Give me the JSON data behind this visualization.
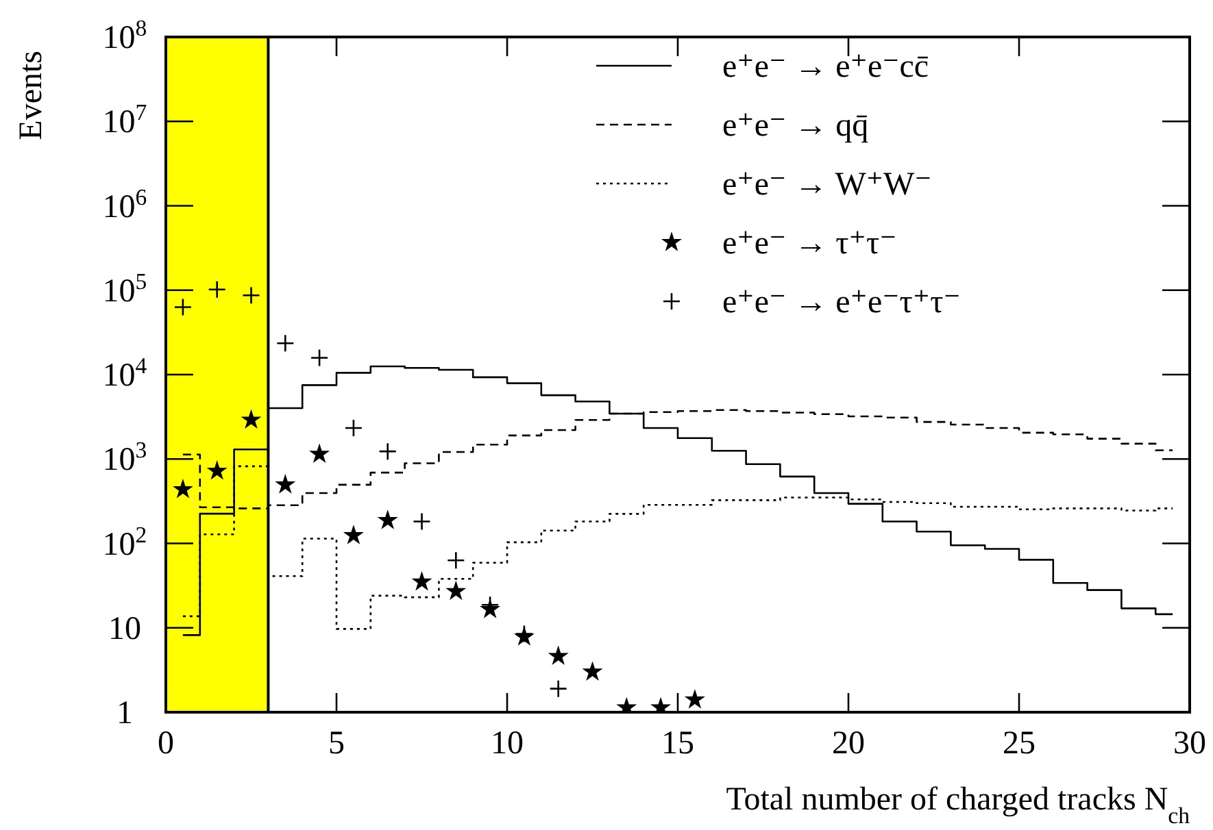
{
  "chart_data": {
    "type": "step",
    "xlabel": "Total number of charged tracks N$_{ch}$",
    "ylabel": "Events",
    "log": "y",
    "xlim": [
      0,
      30
    ],
    "ylim": [
      1,
      100000000
    ],
    "xticks": [
      0,
      5,
      10,
      15,
      20,
      25,
      30
    ],
    "yticks": [
      1,
      10,
      {
        "value": 100,
        "label": "10$^{2}$"
      },
      {
        "value": 1000,
        "label": "10$^{3}$"
      },
      {
        "value": 10000,
        "label": "10$^{4}$"
      },
      {
        "value": 100000,
        "label": "10$^{5}$"
      },
      {
        "value": 1000000,
        "label": "10$^{6}$"
      },
      {
        "value": 10000000,
        "label": "10$^{7}$"
      },
      {
        "value": 100000000,
        "label": "10$^{8}$"
      }
    ],
    "grid": false,
    "legend": "top right",
    "bands": [
      {
        "axis": "x",
        "from": 0,
        "to": 3,
        "color": "#ffff00"
      }
    ],
    "ref_lines": [
      {
        "axis": "x",
        "value": 3,
        "color": "#000000",
        "line_style": "solid"
      }
    ],
    "x": [
      0.5,
      1.5,
      2.5,
      3.5,
      4.5,
      5.5,
      6.5,
      7.5,
      8.5,
      9.5,
      10.5,
      11.5,
      12.5,
      13.5,
      14.5,
      15.5,
      16.5,
      17.5,
      18.5,
      19.5,
      20.5,
      21.5,
      22.5,
      23.5,
      24.5,
      25.5,
      26.5,
      27.5,
      28.5,
      29.5
    ],
    "series": [
      {
        "name": "e⁺e⁻ → e⁺e⁻cc̄",
        "color": "#000000",
        "line_style": "solid",
        "values": [
          8.2,
          225,
          1300,
          4000,
          7500,
          10500,
          12500,
          12000,
          11400,
          9300,
          7900,
          5700,
          4800,
          3450,
          2330,
          1770,
          1250,
          870,
          620,
          395,
          295,
          182,
          138,
          95,
          86,
          64,
          34,
          28,
          17,
          14.5
        ]
      },
      {
        "name": "e⁺e⁻ → qq̄",
        "color": "#000000",
        "line_style": "dashed",
        "values": [
          1130,
          268,
          260,
          283,
          395,
          495,
          690,
          890,
          1210,
          1480,
          1900,
          2200,
          2900,
          3450,
          3600,
          3700,
          3800,
          3700,
          3550,
          3400,
          3200,
          3100,
          2750,
          2560,
          2330,
          2050,
          1960,
          1740,
          1520,
          1270
        ]
      },
      {
        "name": "e⁺e⁻ → W⁺W⁻",
        "color": "#000000",
        "line_style": "dotted",
        "values": [
          13.7,
          128,
          820,
          41,
          114,
          9.7,
          24,
          23,
          38,
          59,
          103,
          142,
          182,
          224,
          286,
          286,
          325,
          325,
          350,
          350,
          332,
          310,
          300,
          272,
          272,
          253,
          260,
          260,
          245,
          260
        ]
      },
      {
        "name": "e⁺e⁻ → τ⁺τ⁻",
        "type": "scatter",
        "color": "#000000",
        "marker": "star",
        "x": [
          0.5,
          1.5,
          2.5,
          3.5,
          4.5,
          5.5,
          6.5,
          7.5,
          8.5,
          9.5,
          10.5,
          11.5,
          12.5,
          13.5,
          14.5,
          15.5
        ],
        "values": [
          435,
          720,
          2900,
          495,
          1140,
          124,
          187,
          35,
          27,
          16.5,
          7.8,
          4.6,
          3.0,
          1.13,
          1.13,
          1.4
        ]
      },
      {
        "name": "e⁺e⁻ → e⁺e⁻τ⁺τ⁻",
        "type": "scatter",
        "color": "#000000",
        "marker": "cross",
        "x": [
          0.5,
          1.5,
          2.5,
          3.5,
          4.5,
          5.5,
          6.5,
          7.5,
          8.5,
          9.5,
          10.5,
          11.5
        ],
        "values": [
          63000,
          102000,
          87000,
          23500,
          15800,
          2330,
          1230,
          182,
          63,
          18.7,
          8.5,
          1.9
        ]
      }
    ]
  }
}
